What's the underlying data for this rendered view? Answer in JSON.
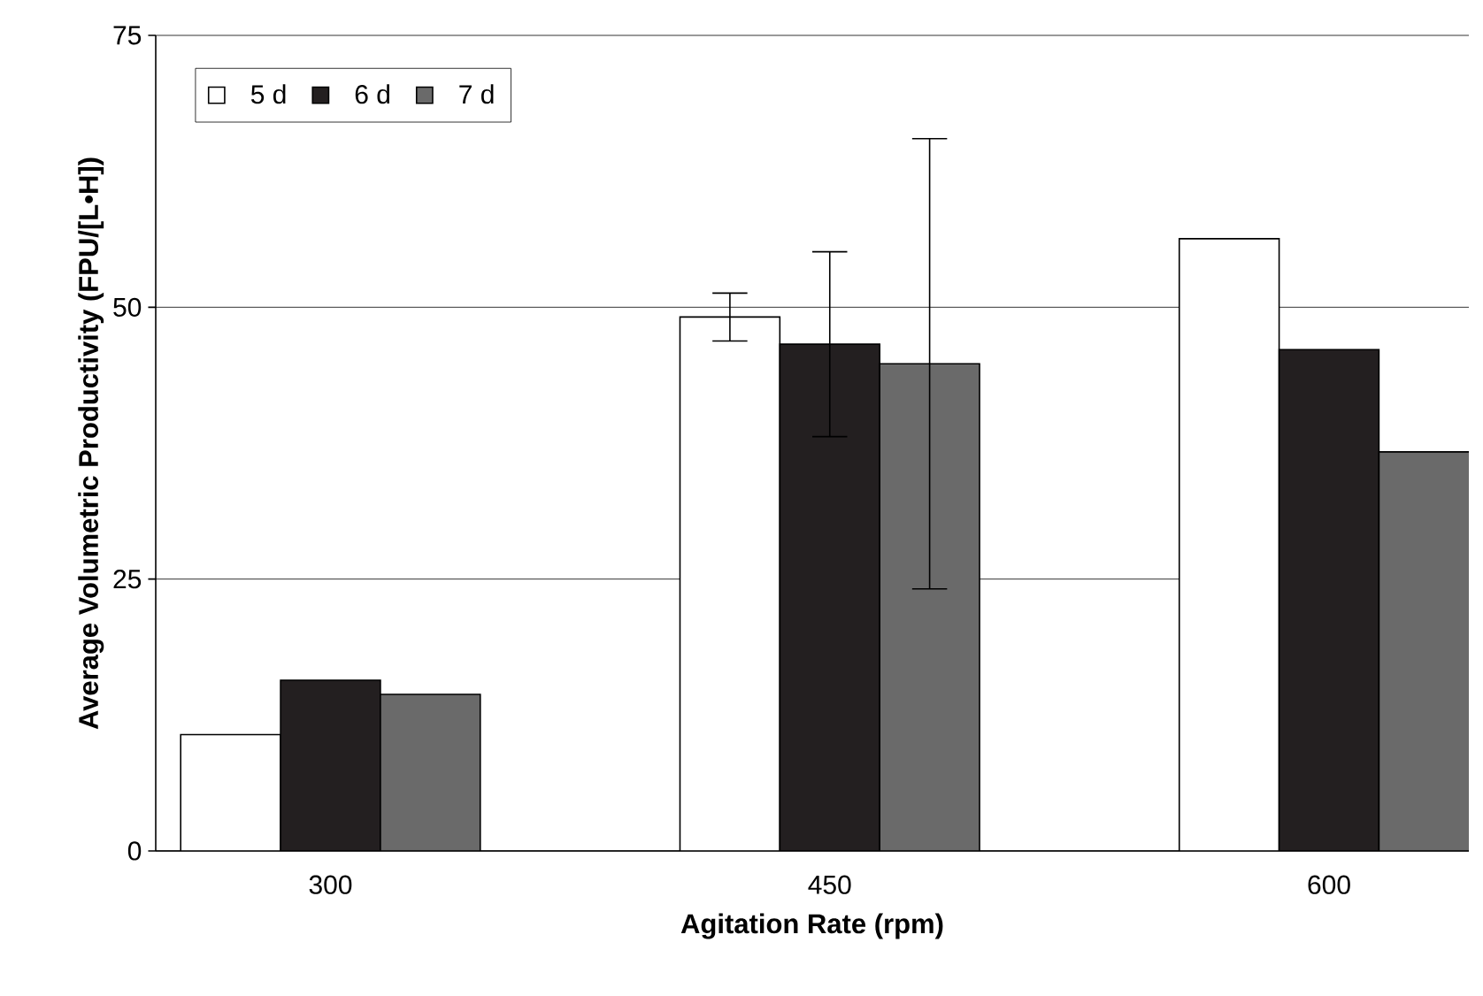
{
  "chart_data": {
    "type": "bar",
    "xlabel": "Agitation Rate (rpm)",
    "ylabel": "Average Volumetric Productivity (FPU/[L•H])",
    "categories": [
      "300",
      "450",
      "600"
    ],
    "series": [
      {
        "name": "5 d",
        "color": "#ffffff",
        "values": [
          10.7,
          49.1,
          56.3
        ],
        "errors": [
          null,
          2.2,
          null
        ]
      },
      {
        "name": "6 d",
        "color": "#231f20",
        "values": [
          15.7,
          46.6,
          46.1
        ],
        "errors": [
          null,
          8.5,
          null
        ]
      },
      {
        "name": "7 d",
        "color": "#6a6a6a",
        "values": [
          14.4,
          44.8,
          36.7
        ],
        "errors": [
          null,
          20.7,
          null
        ]
      }
    ],
    "ylim": [
      0,
      75
    ],
    "yticks": [
      0,
      25,
      50,
      75
    ],
    "grid": "y",
    "legend": "top left"
  }
}
